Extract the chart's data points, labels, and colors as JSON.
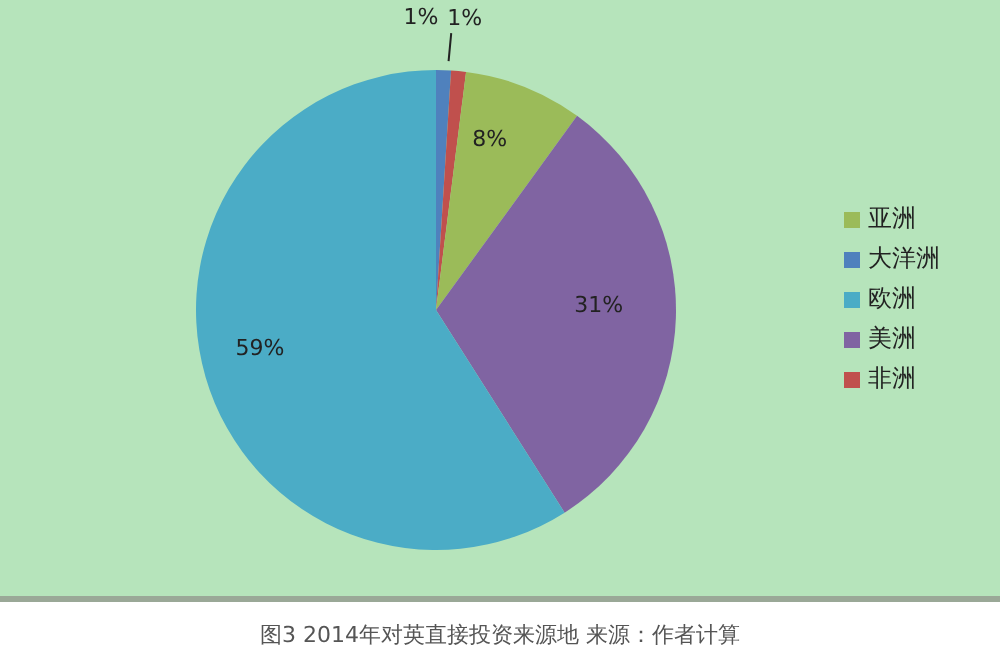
{
  "chart_data": {
    "type": "pie",
    "categories": [
      "大洋洲",
      "非洲",
      "亚洲",
      "美洲",
      "欧洲"
    ],
    "values": [
      1,
      1,
      8,
      31,
      59
    ],
    "colors": [
      "#4f81bd",
      "#c0504d",
      "#9bbb59",
      "#8064a2",
      "#4bacc6"
    ],
    "value_labels": [
      "1%",
      "1%",
      "8%",
      "31%",
      "59%"
    ],
    "legend": "right",
    "annotations": [
      "图3 2014年对英直接投资来源地 来源：作者计算"
    ]
  }
}
